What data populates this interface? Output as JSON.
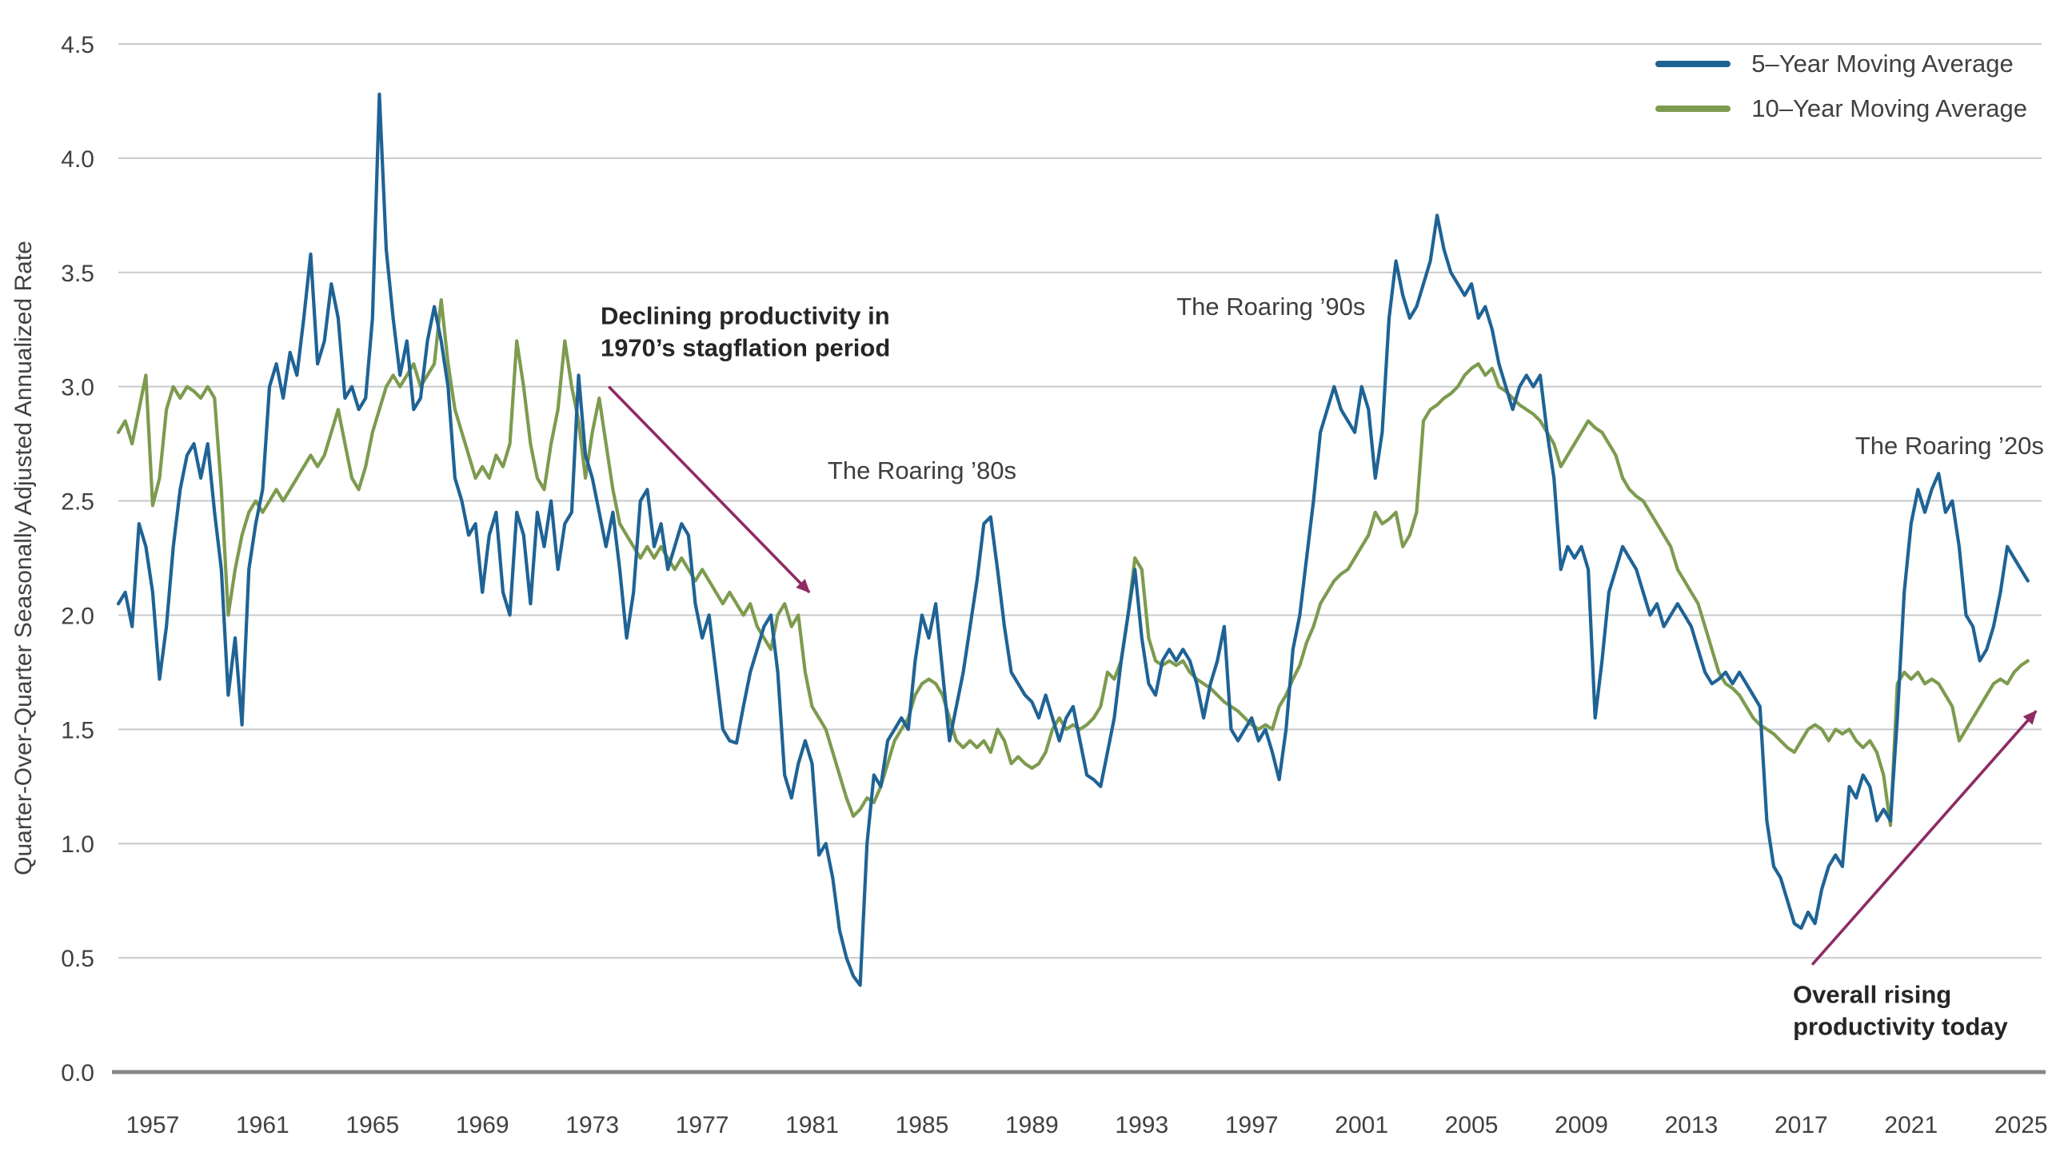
{
  "chart_data": {
    "type": "line",
    "ylabel": "Quarter-Over-Quarter Seasonally Adjusted Annualized Rate",
    "xlabel": "",
    "ylim": [
      0,
      4.5
    ],
    "xlim": [
      1955.75,
      2025.75
    ],
    "y_ticks": [
      0.0,
      0.5,
      1.0,
      1.5,
      2.0,
      2.5,
      3.0,
      3.5,
      4.0,
      4.5
    ],
    "x_ticks": [
      1957,
      1961,
      1965,
      1969,
      1973,
      1977,
      1981,
      1985,
      1989,
      1993,
      1997,
      2001,
      2005,
      2009,
      2013,
      2017,
      2021,
      2025
    ],
    "grid": "horizontal",
    "legend_position": "top-right",
    "arrow_color": "#8E2B63",
    "axis_color": "#85878A",
    "grid_color": "#C8C9CB",
    "text_color": "#414042",
    "series": [
      {
        "name": "5–Year Moving Average",
        "color": "#1F6395",
        "x0": 1955.75,
        "dx": 0.25,
        "values": [
          2.05,
          2.1,
          1.95,
          2.4,
          2.3,
          2.1,
          1.72,
          1.95,
          2.3,
          2.55,
          2.7,
          2.75,
          2.6,
          2.75,
          2.45,
          2.2,
          1.65,
          1.9,
          1.52,
          2.2,
          2.4,
          2.55,
          3.0,
          3.1,
          2.95,
          3.15,
          3.05,
          3.3,
          3.58,
          3.1,
          3.2,
          3.45,
          3.3,
          2.95,
          3.0,
          2.9,
          2.95,
          3.3,
          4.28,
          3.6,
          3.3,
          3.05,
          3.2,
          2.9,
          2.95,
          3.2,
          3.35,
          3.2,
          3.0,
          2.6,
          2.5,
          2.35,
          2.4,
          2.1,
          2.35,
          2.45,
          2.1,
          2.0,
          2.45,
          2.35,
          2.05,
          2.45,
          2.3,
          2.5,
          2.2,
          2.4,
          2.45,
          3.05,
          2.7,
          2.6,
          2.45,
          2.3,
          2.45,
          2.2,
          1.9,
          2.1,
          2.5,
          2.55,
          2.3,
          2.4,
          2.2,
          2.3,
          2.4,
          2.35,
          2.05,
          1.9,
          2.0,
          1.75,
          1.5,
          1.45,
          1.44,
          1.6,
          1.75,
          1.85,
          1.95,
          2.0,
          1.75,
          1.3,
          1.2,
          1.35,
          1.45,
          1.35,
          0.95,
          1.0,
          0.85,
          0.62,
          0.5,
          0.42,
          0.38,
          1.0,
          1.3,
          1.25,
          1.45,
          1.5,
          1.55,
          1.5,
          1.8,
          2.0,
          1.9,
          2.05,
          1.75,
          1.45,
          1.6,
          1.75,
          1.95,
          2.15,
          2.4,
          2.43,
          2.2,
          1.95,
          1.75,
          1.7,
          1.65,
          1.62,
          1.55,
          1.65,
          1.55,
          1.45,
          1.55,
          1.6,
          1.45,
          1.3,
          1.28,
          1.25,
          1.4,
          1.55,
          1.8,
          2.0,
          2.2,
          1.9,
          1.7,
          1.65,
          1.8,
          1.85,
          1.8,
          1.85,
          1.8,
          1.7,
          1.55,
          1.7,
          1.8,
          1.95,
          1.5,
          1.45,
          1.5,
          1.55,
          1.45,
          1.5,
          1.4,
          1.28,
          1.5,
          1.85,
          2.0,
          2.25,
          2.5,
          2.8,
          2.9,
          3.0,
          2.9,
          2.85,
          2.8,
          3.0,
          2.9,
          2.6,
          2.8,
          3.3,
          3.55,
          3.4,
          3.3,
          3.35,
          3.45,
          3.55,
          3.75,
          3.6,
          3.5,
          3.45,
          3.4,
          3.45,
          3.3,
          3.35,
          3.25,
          3.1,
          3.0,
          2.9,
          3.0,
          3.05,
          3.0,
          3.05,
          2.8,
          2.6,
          2.2,
          2.3,
          2.25,
          2.3,
          2.2,
          1.55,
          1.8,
          2.1,
          2.2,
          2.3,
          2.25,
          2.2,
          2.1,
          2.0,
          2.05,
          1.95,
          2.0,
          2.05,
          2.0,
          1.95,
          1.85,
          1.75,
          1.7,
          1.72,
          1.75,
          1.7,
          1.75,
          1.7,
          1.65,
          1.6,
          1.1,
          0.9,
          0.85,
          0.75,
          0.65,
          0.63,
          0.7,
          0.65,
          0.8,
          0.9,
          0.95,
          0.9,
          1.25,
          1.2,
          1.3,
          1.25,
          1.1,
          1.15,
          1.1,
          1.55,
          2.1,
          2.4,
          2.55,
          2.45,
          2.55,
          2.62,
          2.45,
          2.5,
          2.3,
          2.0,
          1.95,
          1.8,
          1.85,
          1.95,
          2.1,
          2.3,
          2.25,
          2.2,
          2.15
        ]
      },
      {
        "name": "10–Year Moving Average",
        "color": "#7D9B4F",
        "x0": 1955.75,
        "dx": 0.25,
        "values": [
          2.8,
          2.85,
          2.75,
          2.9,
          3.05,
          2.48,
          2.6,
          2.9,
          3.0,
          2.95,
          3.0,
          2.98,
          2.95,
          3.0,
          2.95,
          2.55,
          2.0,
          2.2,
          2.35,
          2.45,
          2.5,
          2.45,
          2.5,
          2.55,
          2.5,
          2.55,
          2.6,
          2.65,
          2.7,
          2.65,
          2.7,
          2.8,
          2.9,
          2.75,
          2.6,
          2.55,
          2.65,
          2.8,
          2.9,
          3.0,
          3.05,
          3.0,
          3.05,
          3.1,
          3.0,
          3.05,
          3.1,
          3.38,
          3.1,
          2.9,
          2.8,
          2.7,
          2.6,
          2.65,
          2.6,
          2.7,
          2.65,
          2.75,
          3.2,
          3.0,
          2.75,
          2.6,
          2.55,
          2.75,
          2.9,
          3.2,
          3.0,
          2.85,
          2.6,
          2.8,
          2.95,
          2.75,
          2.55,
          2.4,
          2.35,
          2.3,
          2.25,
          2.3,
          2.25,
          2.3,
          2.25,
          2.2,
          2.25,
          2.2,
          2.15,
          2.2,
          2.15,
          2.1,
          2.05,
          2.1,
          2.05,
          2.0,
          2.05,
          1.95,
          1.9,
          1.85,
          2.0,
          2.05,
          1.95,
          2.0,
          1.75,
          1.6,
          1.55,
          1.5,
          1.4,
          1.3,
          1.2,
          1.12,
          1.15,
          1.2,
          1.18,
          1.25,
          1.35,
          1.45,
          1.5,
          1.55,
          1.65,
          1.7,
          1.72,
          1.7,
          1.65,
          1.55,
          1.45,
          1.42,
          1.45,
          1.42,
          1.45,
          1.4,
          1.5,
          1.45,
          1.35,
          1.38,
          1.35,
          1.33,
          1.35,
          1.4,
          1.5,
          1.55,
          1.5,
          1.52,
          1.5,
          1.52,
          1.55,
          1.6,
          1.75,
          1.72,
          1.8,
          2.0,
          2.25,
          2.2,
          1.9,
          1.8,
          1.78,
          1.8,
          1.78,
          1.8,
          1.75,
          1.72,
          1.7,
          1.68,
          1.65,
          1.62,
          1.6,
          1.58,
          1.55,
          1.52,
          1.5,
          1.52,
          1.5,
          1.6,
          1.65,
          1.72,
          1.78,
          1.88,
          1.95,
          2.05,
          2.1,
          2.15,
          2.18,
          2.2,
          2.25,
          2.3,
          2.35,
          2.45,
          2.4,
          2.42,
          2.45,
          2.3,
          2.35,
          2.45,
          2.85,
          2.9,
          2.92,
          2.95,
          2.97,
          3.0,
          3.05,
          3.08,
          3.1,
          3.05,
          3.08,
          3.0,
          2.98,
          2.95,
          2.92,
          2.9,
          2.88,
          2.85,
          2.8,
          2.75,
          2.65,
          2.7,
          2.75,
          2.8,
          2.85,
          2.82,
          2.8,
          2.75,
          2.7,
          2.6,
          2.55,
          2.52,
          2.5,
          2.45,
          2.4,
          2.35,
          2.3,
          2.2,
          2.15,
          2.1,
          2.05,
          1.95,
          1.85,
          1.75,
          1.7,
          1.68,
          1.65,
          1.6,
          1.55,
          1.52,
          1.5,
          1.48,
          1.45,
          1.42,
          1.4,
          1.45,
          1.5,
          1.52,
          1.5,
          1.45,
          1.5,
          1.48,
          1.5,
          1.45,
          1.42,
          1.45,
          1.4,
          1.3,
          1.08,
          1.7,
          1.75,
          1.72,
          1.75,
          1.7,
          1.72,
          1.7,
          1.65,
          1.6,
          1.45,
          1.5,
          1.55,
          1.6,
          1.65,
          1.7,
          1.72,
          1.7,
          1.75,
          1.78,
          1.8
        ]
      }
    ],
    "annotations": [
      {
        "text": "Declining productivity in 1970’s stagflation period",
        "lines": [
          "Declining productivity in",
          "1970’s stagflation period"
        ],
        "bold": true,
        "x": 1973.3,
        "y": 3.24,
        "anchor": "start",
        "arrow": {
          "x1": 1973.6,
          "y1": 3.0,
          "x2": 1980.9,
          "y2": 2.1
        }
      },
      {
        "text": "The Roaring ’80s",
        "lines": [
          "The Roaring ’80s"
        ],
        "bold": false,
        "x": 1985.0,
        "y": 2.63,
        "anchor": "middle"
      },
      {
        "text": "The Roaring ’90s",
        "lines": [
          "The Roaring ’90s"
        ],
        "bold": false,
        "x": 1997.7,
        "y": 3.35,
        "anchor": "middle"
      },
      {
        "text": "The Roaring ’20s",
        "lines": [
          "The Roaring ’20s"
        ],
        "bold": false,
        "x": 2022.4,
        "y": 2.74,
        "anchor": "middle"
      },
      {
        "text": "Overall rising productivity today",
        "lines": [
          "Overall rising",
          "productivity today"
        ],
        "bold": true,
        "x": 2016.7,
        "y": 0.27,
        "anchor": "start",
        "arrow": {
          "x1": 2017.4,
          "y1": 0.47,
          "x2": 2025.55,
          "y2": 1.58
        }
      }
    ]
  }
}
